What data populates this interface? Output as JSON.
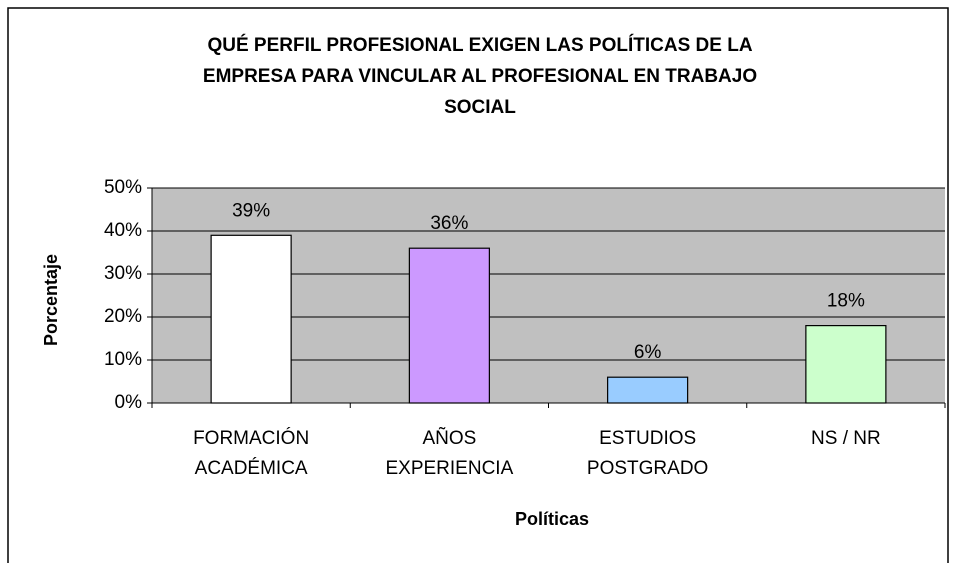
{
  "chart_data": {
    "type": "bar",
    "title": "QUÉ PERFIL PROFESIONAL EXIGEN LAS POLÍTICAS DE LA\nEMPRESA PARA VINCULAR AL PROFESIONAL EN TRABAJO\nSOCIAL",
    "x_label": "Políticas",
    "y_label": "Porcentaje",
    "categories": [
      "FORMACIÓN\nACADÉMICA",
      "AÑOS\nEXPERIENCIA",
      "ESTUDIOS\nPOSTGRADO",
      "NS / NR"
    ],
    "values": [
      39,
      36,
      6,
      18
    ],
    "value_labels": [
      "39%",
      "36%",
      "6%",
      "18%"
    ],
    "colors": [
      "#ffffff",
      "#cc99ff",
      "#99ccff",
      "#ccffcc"
    ],
    "plot_background": "#c0c0c0",
    "ylim": [
      0,
      50
    ],
    "yticks": [
      {
        "value": 0,
        "label": "0%"
      },
      {
        "value": 10,
        "label": "10%"
      },
      {
        "value": 20,
        "label": "20%"
      },
      {
        "value": 30,
        "label": "30%"
      },
      {
        "value": 40,
        "label": "40%"
      },
      {
        "value": 50,
        "label": "50%"
      }
    ],
    "grid": true
  }
}
